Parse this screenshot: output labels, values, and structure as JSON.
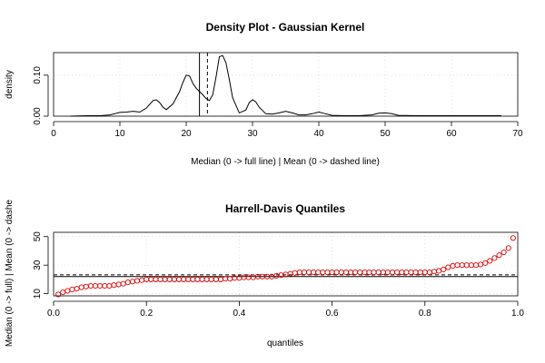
{
  "chart_data": [
    {
      "type": "line",
      "title": "Density Plot - Gaussian Kernel",
      "xlabel": "Median (0 -> full line) | Mean (0 -> dashed line)",
      "ylabel": "density",
      "xlim": [
        0,
        70
      ],
      "ylim": [
        0,
        0.155
      ],
      "x_ticks": [
        0,
        10,
        20,
        30,
        40,
        50,
        60,
        70
      ],
      "y_ticks": [
        0.0,
        0.1
      ],
      "y_tick_labels": [
        "0.00",
        "0.10"
      ],
      "grid": true,
      "median": 22,
      "mean": 23.2,
      "series": [
        {
          "x": [
            2.5,
            5,
            7,
            8.5,
            10,
            11,
            12,
            13,
            14,
            15,
            15.5,
            16,
            16.5,
            17,
            18,
            19,
            19.5,
            20,
            20.5,
            21,
            21.5,
            22,
            22.5,
            23,
            23.5,
            24,
            24.5,
            25,
            25.5,
            26,
            26.5,
            27,
            28,
            29,
            29.5,
            30,
            30.5,
            31,
            32,
            33,
            34,
            35,
            36,
            37,
            38,
            39,
            40,
            41,
            42,
            44,
            46,
            48,
            49,
            50,
            51,
            52,
            55,
            60,
            65,
            67.5
          ],
          "y": [
            0.0,
            0.001,
            0.001,
            0.003,
            0.009,
            0.01,
            0.012,
            0.01,
            0.02,
            0.038,
            0.04,
            0.033,
            0.022,
            0.016,
            0.03,
            0.06,
            0.082,
            0.1,
            0.098,
            0.08,
            0.068,
            0.06,
            0.052,
            0.043,
            0.038,
            0.052,
            0.095,
            0.145,
            0.148,
            0.13,
            0.09,
            0.045,
            0.008,
            0.015,
            0.033,
            0.04,
            0.035,
            0.022,
            0.006,
            0.005,
            0.008,
            0.012,
            0.008,
            0.003,
            0.003,
            0.006,
            0.01,
            0.006,
            0.002,
            0.001,
            0.001,
            0.003,
            0.007,
            0.008,
            0.006,
            0.002,
            0.001,
            0.001,
            0.001,
            0.001
          ]
        }
      ]
    },
    {
      "type": "scatter",
      "title": "Harrell-Davis Quantiles",
      "xlabel": "quantiles",
      "ylabel": "Median (0 -> full) | Mean (0 -> dashe",
      "xlim": [
        0,
        1
      ],
      "ylim": [
        8.5,
        53
      ],
      "x_ticks": [
        0.0,
        0.2,
        0.4,
        0.6,
        0.8,
        1.0
      ],
      "x_tick_labels": [
        "0.0",
        "0.2",
        "0.4",
        "0.6",
        "0.8",
        "1.0"
      ],
      "y_ticks": [
        10,
        30,
        50
      ],
      "y_tick_labels": [
        "10",
        "30",
        "50"
      ],
      "grid": true,
      "median": 22,
      "mean": 23.2,
      "point_color": "#e00000",
      "series": [
        {
          "x": [
            0.01,
            0.02,
            0.03,
            0.04,
            0.05,
            0.06,
            0.07,
            0.08,
            0.09,
            0.1,
            0.11,
            0.12,
            0.13,
            0.14,
            0.15,
            0.16,
            0.17,
            0.18,
            0.19,
            0.2,
            0.21,
            0.22,
            0.23,
            0.24,
            0.25,
            0.26,
            0.27,
            0.28,
            0.29,
            0.3,
            0.31,
            0.32,
            0.33,
            0.34,
            0.35,
            0.36,
            0.37,
            0.38,
            0.39,
            0.4,
            0.41,
            0.42,
            0.43,
            0.44,
            0.45,
            0.46,
            0.47,
            0.48,
            0.49,
            0.5,
            0.51,
            0.52,
            0.53,
            0.54,
            0.55,
            0.56,
            0.57,
            0.58,
            0.59,
            0.6,
            0.61,
            0.62,
            0.63,
            0.64,
            0.65,
            0.66,
            0.67,
            0.68,
            0.69,
            0.7,
            0.71,
            0.72,
            0.73,
            0.74,
            0.75,
            0.76,
            0.77,
            0.78,
            0.79,
            0.8,
            0.81,
            0.82,
            0.83,
            0.84,
            0.85,
            0.86,
            0.87,
            0.88,
            0.89,
            0.9,
            0.91,
            0.92,
            0.93,
            0.94,
            0.95,
            0.96,
            0.97,
            0.98,
            0.99
          ],
          "y": [
            9.5,
            11,
            12,
            13,
            13.5,
            14.5,
            15,
            15.5,
            15.5,
            15.5,
            15.5,
            15.5,
            16,
            16.5,
            17,
            18,
            18.5,
            19,
            19.5,
            20,
            20,
            20,
            20,
            20,
            20,
            20,
            20,
            20,
            20,
            20,
            20,
            20,
            20,
            20,
            20,
            20,
            20.5,
            20.5,
            21,
            21,
            21.5,
            21.5,
            21.5,
            22,
            22,
            22,
            22,
            22.5,
            23,
            23.5,
            24,
            24.5,
            25,
            25,
            25,
            25,
            25,
            25,
            25,
            25,
            25,
            25,
            25,
            25,
            25,
            25,
            25,
            25,
            25,
            25,
            25,
            25,
            25,
            25,
            25,
            25,
            25,
            25,
            25,
            25,
            25,
            25.5,
            26,
            27,
            28.5,
            29.5,
            30,
            30,
            30,
            30,
            30,
            30.5,
            31.5,
            33,
            35,
            37,
            39,
            42,
            49
          ]
        }
      ]
    }
  ]
}
